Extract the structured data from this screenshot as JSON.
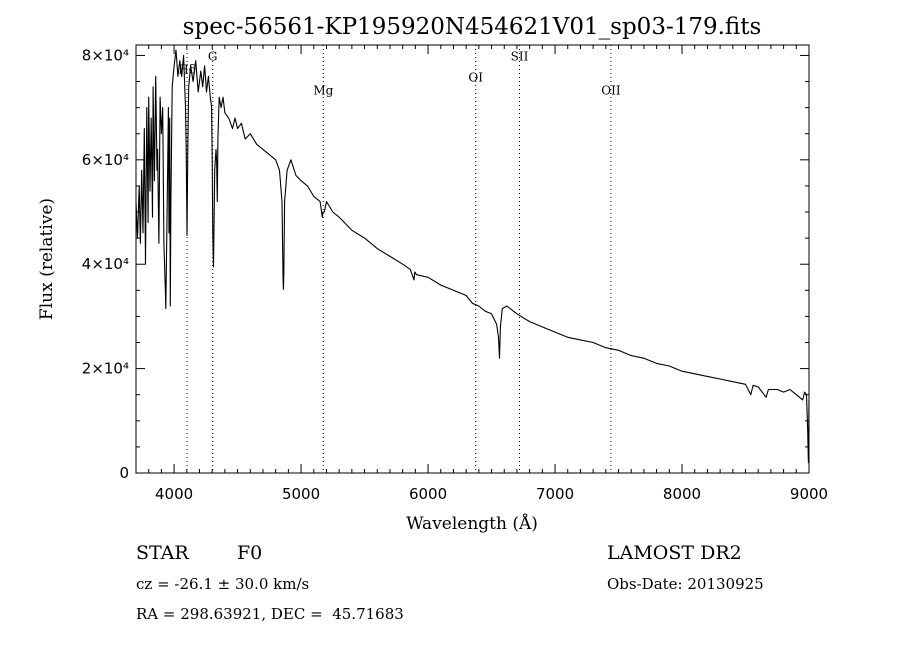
{
  "title": "spec-56561-KP195920N454621V01_sp03-179.fits",
  "info": {
    "class": "STAR",
    "subclass": "F0",
    "survey": "LAMOST DR2",
    "cz": "cz = -26.1 ± 30.0 km/s",
    "obs_date": "Obs-Date: 20130925",
    "coords": "RA = 298.63921, DEC =  45.71683"
  },
  "chart_data": {
    "type": "line",
    "title": "spec-56561-KP195920N454621V01_sp03-179.fits",
    "xlabel": "Wavelength (Å)",
    "ylabel": "Flux (relative)",
    "xlim": [
      3700,
      9000
    ],
    "ylim": [
      0,
      82000
    ],
    "x_ticks": [
      {
        "value": 4000,
        "label": "4000"
      },
      {
        "value": 5000,
        "label": "5000"
      },
      {
        "value": 6000,
        "label": "6000"
      },
      {
        "value": 7000,
        "label": "7000"
      },
      {
        "value": 8000,
        "label": "8000"
      },
      {
        "value": 9000,
        "label": "9000"
      }
    ],
    "y_ticks": [
      {
        "value": 0,
        "label": "0"
      },
      {
        "value": 20000,
        "label": "2×10⁴"
      },
      {
        "value": 40000,
        "label": "4×10⁴"
      },
      {
        "value": 60000,
        "label": "6×10⁴"
      },
      {
        "value": 80000,
        "label": "8×10⁴"
      }
    ],
    "grid": false,
    "line_labels": [
      {
        "label": "Hδ",
        "x": 4102,
        "y": 76500
      },
      {
        "label": "G",
        "x": 4304,
        "y": 79000
      },
      {
        "label": "Mg",
        "x": 5175,
        "y": 72500
      },
      {
        "label": "OI",
        "x": 6375,
        "y": 75000
      },
      {
        "label": "SII",
        "x": 6720,
        "y": 79000
      },
      {
        "label": "OII",
        "x": 7440,
        "y": 72500
      }
    ],
    "series": [
      {
        "x": [
          3700,
          3712,
          3725,
          3735,
          3745,
          3755,
          3765,
          3775,
          3785,
          3795,
          3800,
          3810,
          3820,
          3830,
          3835,
          3845,
          3855,
          3865,
          3870,
          3880,
          3890,
          3900,
          3910,
          3920,
          3930,
          3935,
          3945,
          3955,
          3960,
          3965,
          3970,
          3975,
          3985,
          4000,
          4015,
          4030,
          4045,
          4060,
          4075,
          4090,
          4095,
          4102,
          4108,
          4115,
          4130,
          4150,
          4170,
          4190,
          4210,
          4225,
          4240,
          4255,
          4270,
          4285,
          4295,
          4300,
          4305,
          4310,
          4320,
          4330,
          4335,
          4340,
          4345,
          4355,
          4370,
          4385,
          4400,
          4430,
          4460,
          4480,
          4500,
          4530,
          4560,
          4600,
          4650,
          4700,
          4750,
          4800,
          4830,
          4850,
          4858,
          4861,
          4864,
          4870,
          4890,
          4920,
          4960,
          5000,
          5050,
          5100,
          5150,
          5167,
          5172,
          5183,
          5200,
          5250,
          5300,
          5400,
          5500,
          5600,
          5700,
          5800,
          5860,
          5889,
          5895,
          5910,
          6000,
          6100,
          6200,
          6300,
          6350,
          6400,
          6450,
          6500,
          6540,
          6555,
          6563,
          6570,
          6585,
          6620,
          6700,
          6800,
          6900,
          7000,
          7100,
          7200,
          7300,
          7400,
          7500,
          7600,
          7700,
          7800,
          7900,
          8000,
          8100,
          8200,
          8300,
          8400,
          8500,
          8542,
          8560,
          8600,
          8662,
          8680,
          8750,
          8800,
          8850,
          8900,
          8950,
          8965,
          8980,
          8990,
          8995,
          9000
        ],
        "y": [
          52000,
          45000,
          55000,
          44000,
          58000,
          46000,
          66000,
          40000,
          70000,
          48000,
          72000,
          54000,
          68000,
          49000,
          74000,
          56000,
          76000,
          58000,
          62000,
          44000,
          72000,
          65000,
          70000,
          44000,
          36000,
          31500,
          50000,
          70000,
          46000,
          68000,
          32000,
          52000,
          74000,
          78000,
          81000,
          76000,
          79000,
          76000,
          80000,
          70000,
          62000,
          45500,
          62000,
          74000,
          78000,
          75000,
          79000,
          73000,
          77000,
          74000,
          78000,
          73000,
          76000,
          72000,
          70000,
          60000,
          46000,
          39500,
          58000,
          62000,
          60000,
          52000,
          64000,
          72000,
          70000,
          72000,
          69000,
          68000,
          66000,
          68000,
          66000,
          67000,
          64000,
          65000,
          63000,
          62000,
          61000,
          60000,
          58000,
          52000,
          38000,
          35200,
          38000,
          52000,
          58000,
          60000,
          57000,
          56000,
          55000,
          53000,
          52000,
          49000,
          50000,
          50000,
          52000,
          50000,
          49000,
          46500,
          45000,
          43000,
          41500,
          40000,
          39000,
          37000,
          38500,
          38000,
          37500,
          36000,
          35000,
          34000,
          32500,
          32000,
          31000,
          30500,
          28500,
          26000,
          22000,
          28000,
          31500,
          32000,
          30500,
          29000,
          28000,
          27000,
          26000,
          25500,
          25000,
          24000,
          23500,
          22500,
          22000,
          21000,
          20500,
          19500,
          19000,
          18500,
          18000,
          17500,
          17000,
          15000,
          16800,
          16500,
          14500,
          16000,
          16000,
          15500,
          16000,
          15000,
          14000,
          15500,
          15000,
          8000,
          2000,
          14000
        ]
      }
    ]
  }
}
